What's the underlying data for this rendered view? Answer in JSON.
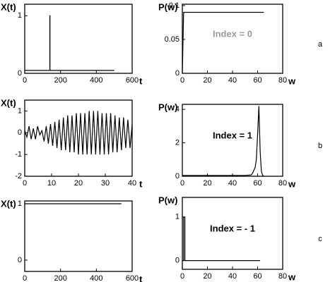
{
  "chart_data": [
    {
      "type": "line",
      "ylabel": "X(t)",
      "xlabel": "t",
      "color": "#000000",
      "x": [
        0,
        140,
        140,
        141,
        141,
        500
      ],
      "values": [
        0.05,
        0.05,
        1,
        1,
        0.05,
        0.05
      ],
      "xlim": [
        0,
        600
      ],
      "ylim": [
        0,
        1.2
      ],
      "xticks": [
        0,
        200,
        400,
        600
      ],
      "yticks": [
        0,
        1
      ]
    },
    {
      "type": "line",
      "ylabel": "P(w)",
      "xlabel": "w",
      "color": "#000000",
      "annotation": "Index = 0",
      "annotation_color": "#999999",
      "panel": "a",
      "x": [
        0,
        1,
        65
      ],
      "values": [
        0,
        0.09,
        0.09
      ],
      "xlim": [
        0,
        80
      ],
      "ylim": [
        0,
        0.102
      ],
      "xticks": [
        0,
        20,
        40,
        60,
        80
      ],
      "yticks": [
        0,
        0.05,
        0.1
      ]
    },
    {
      "type": "line",
      "ylabel": "X(t)",
      "xlabel": "t",
      "color": "#000000",
      "x": [
        0,
        0.8,
        1.6,
        2.4,
        3.2,
        4,
        4.8,
        5.6,
        6.4,
        7.2,
        8,
        8.8,
        9.6,
        10.4,
        11.2,
        12,
        12.8,
        13.6,
        14.4,
        15.2,
        16,
        16.8,
        17.6,
        18.4,
        19.2,
        20,
        20.8,
        21.6,
        22.4,
        23.2,
        24,
        24.8,
        25.6,
        26.4,
        27.2,
        28,
        28.8,
        29.6,
        30.4,
        31.2,
        32,
        32.8,
        33.6,
        34.4,
        35.2,
        36,
        36.8,
        37.6,
        38.4,
        39.2,
        40
      ],
      "values": [
        0.1,
        -0.2,
        0.3,
        -0.3,
        0.2,
        -0.3,
        0.3,
        -0.1,
        0.1,
        -0.4,
        0.3,
        -0.5,
        0.4,
        -0.6,
        0.5,
        -0.7,
        0.6,
        -0.8,
        0.7,
        -0.8,
        0.8,
        -0.9,
        0.8,
        -0.9,
        0.9,
        -1,
        0.9,
        -1,
        0.9,
        -1,
        1,
        -1,
        1,
        -1,
        1,
        -1,
        0.9,
        -1,
        0.9,
        -1,
        0.9,
        -0.9,
        0.8,
        -0.9,
        0.7,
        -0.8,
        0.7,
        -0.7,
        0.6,
        -0.7,
        0.4
      ],
      "xlim": [
        0,
        40
      ],
      "ylim": [
        -2,
        1.5
      ],
      "xticks": [
        0,
        10,
        20,
        30,
        40
      ],
      "yticks": [
        -2,
        -1,
        0,
        1
      ]
    },
    {
      "type": "line",
      "ylabel": "P(w)",
      "xlabel": "w",
      "color": "#000000",
      "annotation": "Index = 1",
      "annotation_color": "#000000",
      "panel": "b",
      "x": [
        0,
        10,
        20,
        30,
        40,
        50,
        55,
        56,
        58,
        59,
        60,
        61,
        62,
        63,
        64,
        65
      ],
      "values": [
        0.05,
        0.05,
        0.05,
        0.05,
        0.05,
        0.05,
        0.08,
        0.2,
        0.5,
        1,
        2.5,
        4.2,
        1.5,
        0.3,
        0.05,
        0
      ],
      "xlim": [
        0,
        80
      ],
      "ylim": [
        0,
        4.3
      ],
      "xticks": [
        0,
        20,
        40,
        60,
        80
      ],
      "yticks": [
        0,
        2,
        4
      ]
    },
    {
      "type": "line",
      "ylabel": "X(t)",
      "xlabel": "t",
      "color": "#000000",
      "x": [
        0,
        540
      ],
      "values": [
        1,
        1
      ],
      "xlim": [
        0,
        600
      ],
      "ylim": [
        -0.2,
        1.05
      ],
      "xticks": [
        0,
        200,
        400,
        600
      ],
      "yticks": [
        0,
        1
      ]
    },
    {
      "type": "line",
      "ylabel": "P(w)",
      "xlabel": "w",
      "color": "#000000",
      "annotation": "Index = - 1",
      "annotation_color": "#000000",
      "panel": "c",
      "x": [
        0,
        1,
        1,
        2,
        2,
        62
      ],
      "values": [
        0,
        0,
        1,
        1,
        0,
        0
      ],
      "xlim": [
        0,
        80
      ],
      "ylim": [
        -0.2,
        1.45
      ],
      "xticks": [
        0,
        20,
        40,
        60,
        80
      ],
      "yticks": [
        0,
        1
      ]
    }
  ]
}
